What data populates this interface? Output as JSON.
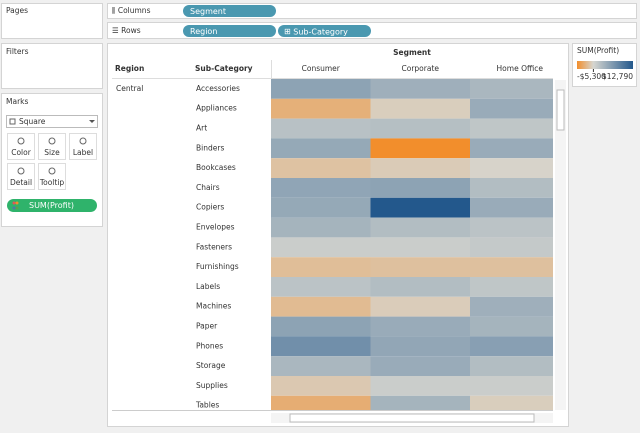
{
  "shelves": {
    "pages": "Pages",
    "columns": {
      "label": "Columns",
      "pill": "Segment"
    },
    "rows": {
      "label": "Rows",
      "pills": [
        "Region",
        "Sub-Category"
      ]
    }
  },
  "filters": "Filters",
  "marks": {
    "title": "Marks",
    "mark_type": "Square",
    "buttons": [
      "Color",
      "Size",
      "Label",
      "Detail",
      "Tooltip"
    ],
    "field": "SUM(Profit)"
  },
  "view": {
    "column_header": "Segment",
    "row_headers": [
      "Region",
      "Sub-Category"
    ],
    "columns": [
      "Consumer",
      "Corporate",
      "Home Office"
    ],
    "region": "Central",
    "rows": [
      "Accessories",
      "Appliances",
      "Art",
      "Binders",
      "Bookcases",
      "Chairs",
      "Copiers",
      "Envelopes",
      "Fasteners",
      "Furnishings",
      "Labels",
      "Machines",
      "Paper",
      "Phones",
      "Storage",
      "Supplies",
      "Tables"
    ],
    "values": [
      [
        2500,
        1500,
        1000
      ],
      [
        -2800,
        -600,
        1800
      ],
      [
        500,
        600,
        300
      ],
      [
        2000,
        -5300,
        1800
      ],
      [
        -1500,
        -800,
        -200
      ],
      [
        2300,
        2500,
        700
      ],
      [
        2000,
        12790,
        1800
      ],
      [
        1200,
        700,
        400
      ],
      [
        100,
        100,
        200
      ],
      [
        -1800,
        -1600,
        -1600
      ],
      [
        400,
        700,
        300
      ],
      [
        -2000,
        -700,
        1500
      ],
      [
        2500,
        1800,
        1200
      ],
      [
        4500,
        2200,
        2800
      ],
      [
        1000,
        1800,
        700
      ],
      [
        -1000,
        100,
        100
      ],
      [
        -3000,
        1200,
        -600
      ]
    ]
  },
  "legend": {
    "title": "SUM(Profit)",
    "min": {
      "value": -5300,
      "label": "-$5,300"
    },
    "max": {
      "value": 12790,
      "label": "$12,790"
    }
  }
}
